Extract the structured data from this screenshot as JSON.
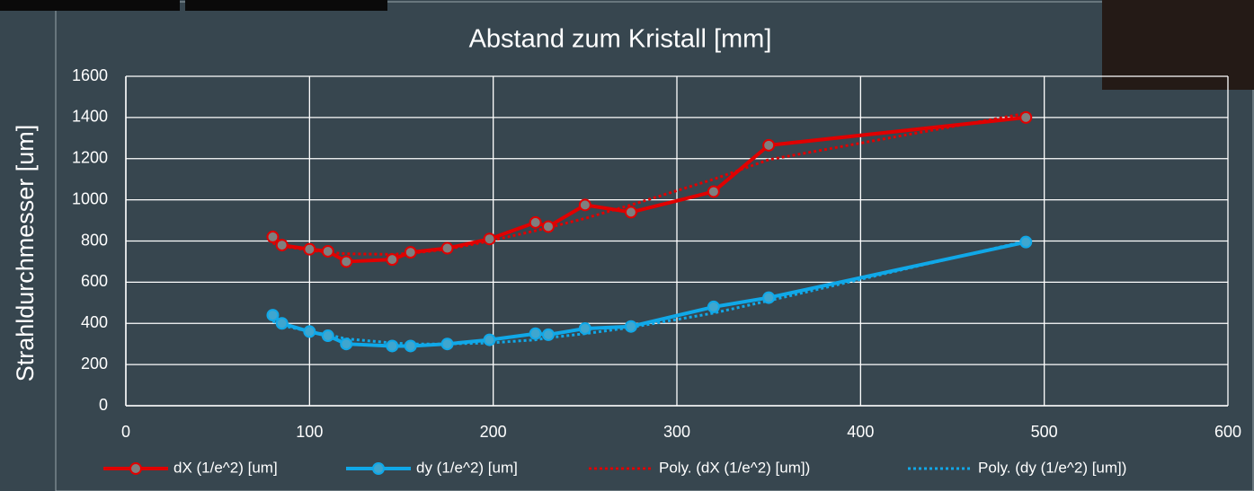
{
  "chart_data": {
    "type": "line",
    "title": "Abstand zum Kristall [mm]",
    "y_label": "Strahldurchmesser [um]",
    "x": [
      80,
      85,
      100,
      110,
      120,
      145,
      155,
      175,
      198,
      223,
      230,
      250,
      275,
      320,
      350,
      490
    ],
    "series": [
      {
        "name": "dX (1/e^2) [um]",
        "color": "#e00000",
        "marker_color": "#7f7f7f",
        "style": "solid",
        "marker": true,
        "values": [
          820,
          780,
          760,
          750,
          700,
          710,
          745,
          765,
          810,
          890,
          870,
          975,
          940,
          1040,
          1265,
          1400
        ]
      },
      {
        "name": "dy (1/e^2) [um]",
        "color": "#10a8e8",
        "marker_color": "#3fa6cf",
        "style": "solid",
        "marker": true,
        "values": [
          440,
          400,
          360,
          340,
          300,
          290,
          290,
          300,
          320,
          350,
          345,
          375,
          385,
          480,
          525,
          795
        ]
      },
      {
        "name": "Poly. (dX (1/e^2) [um])",
        "color": "#e00000",
        "style": "dotted",
        "marker": false,
        "values": [
          790,
          775,
          755,
          745,
          738,
          735,
          740,
          760,
          800,
          850,
          865,
          910,
          975,
          1100,
          1195,
          1420
        ]
      },
      {
        "name": "Poly. (dy (1/e^2) [um])",
        "color": "#10a8e8",
        "style": "dotted",
        "marker": false,
        "values": [
          410,
          390,
          360,
          345,
          325,
          305,
          300,
          300,
          305,
          320,
          330,
          350,
          380,
          450,
          510,
          800
        ]
      }
    ],
    "xlim": [
      0,
      600
    ],
    "xticks": [
      0,
      100,
      200,
      300,
      400,
      500,
      600
    ],
    "ylim": [
      0,
      1600
    ],
    "yticks": [
      0,
      200,
      400,
      600,
      800,
      1000,
      1200,
      1400,
      1600
    ],
    "grid": true,
    "legend": "bottom"
  }
}
